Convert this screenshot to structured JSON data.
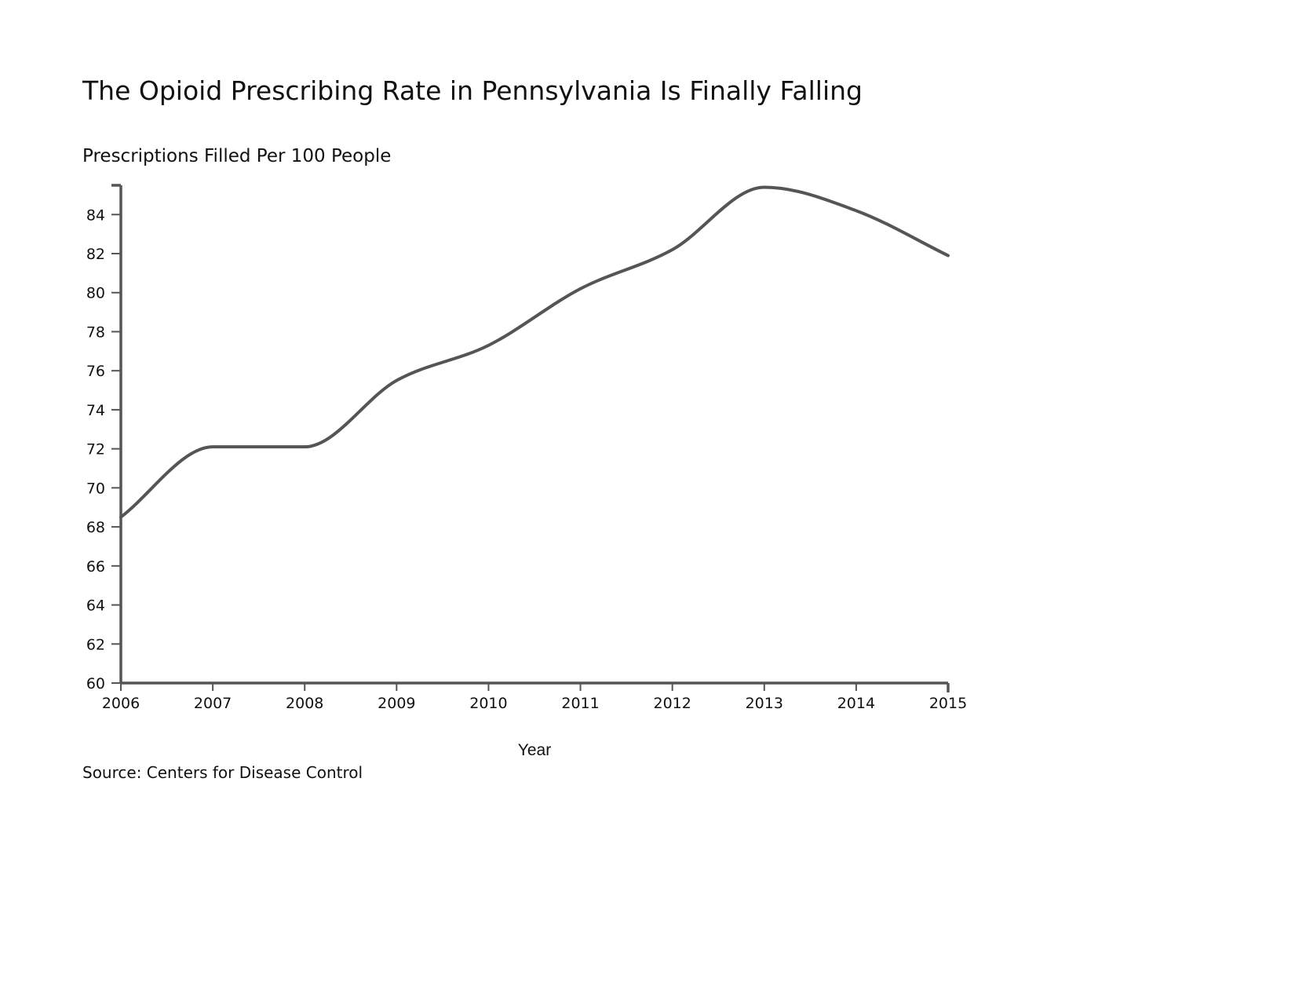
{
  "source_note": "Source: Centers for Disease Control",
  "chart_data": {
    "type": "line",
    "title": "The Opioid Prescribing Rate in Pennsylvania Is Finally Falling",
    "subtitle": "Prescriptions Filled Per 100 People",
    "xlabel": "Year",
    "ylabel": "",
    "x": [
      "2006",
      "2007",
      "2008",
      "2009",
      "2010",
      "2011",
      "2012",
      "2013",
      "2014",
      "2015"
    ],
    "series": [
      {
        "values": [
          68.5,
          72.1,
          72.1,
          75.5,
          77.3,
          80.2,
          82.2,
          85.4,
          84.2,
          81.9
        ]
      }
    ],
    "ylim": [
      60,
      85.5
    ],
    "yticks": [
      "60",
      "62",
      "64",
      "66",
      "68",
      "70",
      "72",
      "74",
      "76",
      "78",
      "80",
      "82",
      "84"
    ],
    "grid": false,
    "legend": "none",
    "line_color": "#555555"
  }
}
